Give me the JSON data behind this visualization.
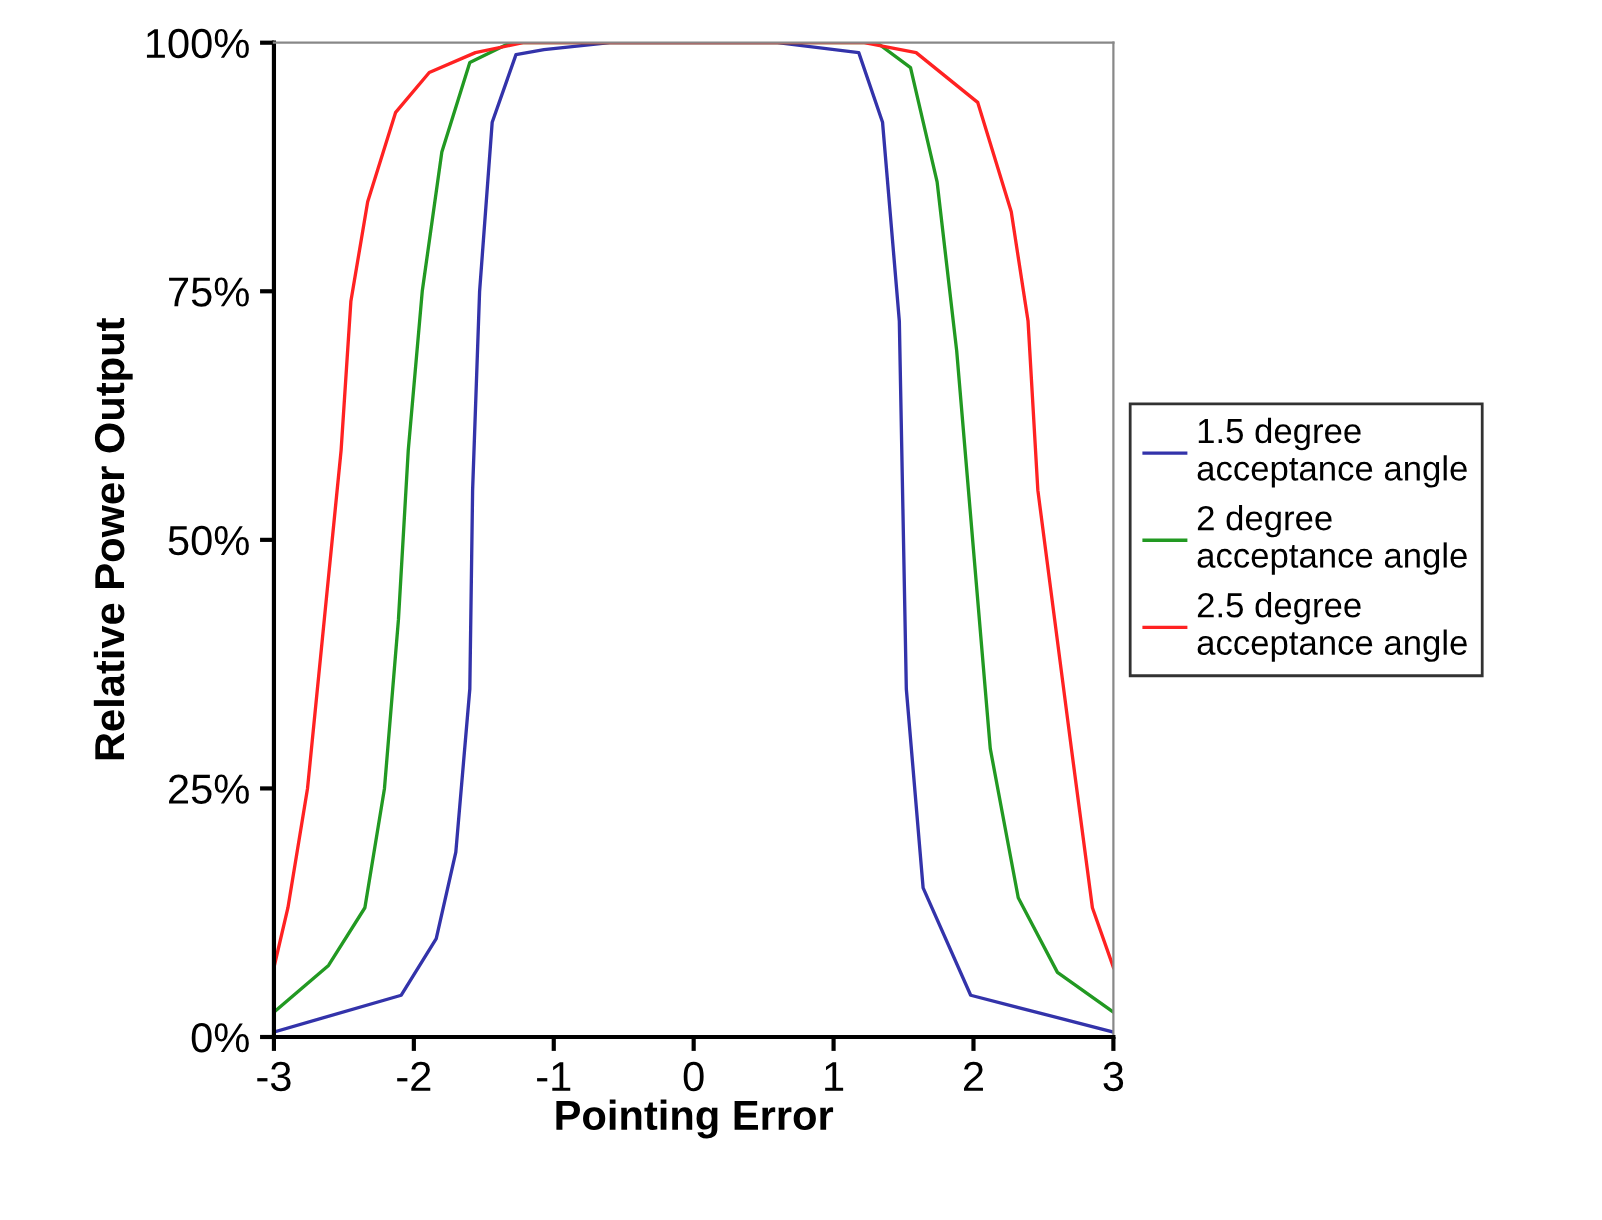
{
  "chart_data": {
    "type": "line",
    "xlabel": "Pointing Error",
    "ylabel": "Relative Power Output",
    "xlim": [
      -3,
      3
    ],
    "xticks": [
      -3,
      -2,
      -1,
      0,
      1,
      2,
      3
    ],
    "ylim": [
      0,
      100
    ],
    "yticks": [
      {
        "value": 0,
        "label": "0%"
      },
      {
        "value": 25,
        "label": "25%"
      },
      {
        "value": 50,
        "label": "50%"
      },
      {
        "value": 75,
        "label": "75%"
      },
      {
        "value": 100,
        "label": "100%"
      }
    ],
    "grid": false,
    "legend": "right",
    "marker": "none",
    "line_style": "solid",
    "series": [
      {
        "name": "1.5 degree\nacceptance angle",
        "color": "#3333aa",
        "x": [
          -3,
          -2.09,
          -1.84,
          -1.7,
          -1.6,
          -1.58,
          -1.53,
          -1.44,
          -1.27,
          -1.07,
          -0.6,
          0,
          0.6,
          1.18,
          1.35,
          1.47,
          1.52,
          1.64,
          1.98,
          3
        ],
        "values": [
          0.5,
          4.2,
          9.9,
          18.6,
          35,
          55,
          75,
          92,
          98.8,
          99.3,
          100,
          100,
          100,
          99,
          92,
          72,
          35,
          15,
          4.2,
          0.5
        ]
      },
      {
        "name": "2 degree\nacceptance angle",
        "color": "#229922",
        "x": [
          -3,
          -2.61,
          -2.35,
          -2.21,
          -2.11,
          -2.04,
          -1.94,
          -1.8,
          -1.6,
          -1.31,
          0,
          1.31,
          1.55,
          1.74,
          1.88,
          2,
          2.12,
          2.32,
          2.6,
          3
        ],
        "values": [
          2.5,
          7.2,
          13,
          25,
          42,
          59,
          75,
          89,
          98,
          100,
          100,
          100,
          97.5,
          86,
          69,
          49,
          29,
          14,
          6.5,
          2.5
        ]
      },
      {
        "name": "2.5 degree\nacceptance angle",
        "color": "#ff2222",
        "x": [
          -3,
          -2.9,
          -2.76,
          -2.64,
          -2.52,
          -2.45,
          -2.33,
          -2.13,
          -1.89,
          -1.56,
          -1.22,
          0,
          1.22,
          1.59,
          2.03,
          2.27,
          2.39,
          2.46,
          2.58,
          2.7,
          2.85,
          3
        ],
        "values": [
          7,
          13,
          25,
          42,
          59,
          74,
          84,
          93,
          97,
          99,
          100,
          100,
          100,
          99,
          94,
          83,
          72,
          55,
          42,
          29,
          13,
          7
        ]
      }
    ]
  }
}
